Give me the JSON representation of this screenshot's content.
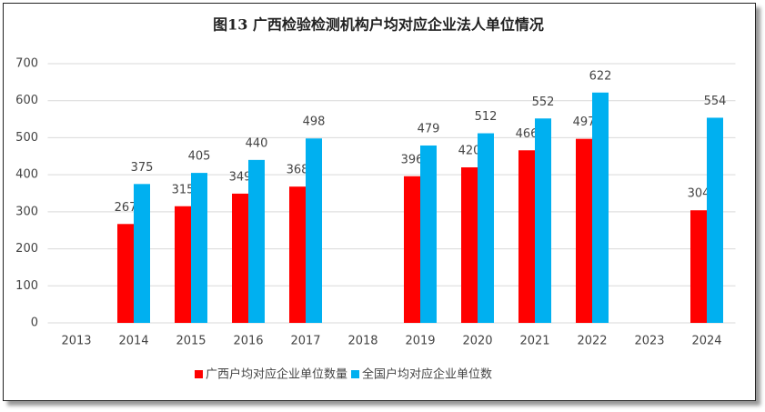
{
  "chart_data": {
    "type": "bar",
    "title": "图13 广西检验检测机构户均对应企业法人单位情况",
    "categories": [
      "2013",
      "2014",
      "2015",
      "2016",
      "2017",
      "2018",
      "2019",
      "2020",
      "2021",
      "2022",
      "2023",
      "2024"
    ],
    "series": [
      {
        "name": "广西户均对应企业单位数量",
        "color": "#ff0000",
        "values": [
          null,
          267,
          315,
          349,
          368,
          null,
          396,
          420,
          466,
          497,
          null,
          304
        ]
      },
      {
        "name": "全国户均对应企业单位数",
        "color": "#00b0f0",
        "values": [
          null,
          375,
          405,
          440,
          498,
          null,
          479,
          512,
          552,
          622,
          null,
          554
        ]
      }
    ],
    "ylim": [
      0,
      700
    ],
    "yticks": [
      0,
      100,
      200,
      300,
      400,
      500,
      600,
      700
    ],
    "grid": true,
    "legend": "bottom"
  }
}
